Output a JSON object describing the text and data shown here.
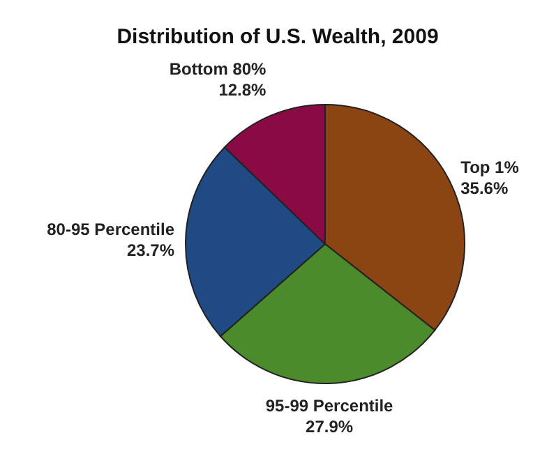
{
  "chart_data": {
    "type": "pie",
    "title": "Distribution of U.S. Wealth, 2009",
    "categories": [
      "Top 1%",
      "95-99 Percentile",
      "80-95 Percentile",
      "Bottom 80%"
    ],
    "values": [
      35.6,
      27.9,
      23.7,
      12.8
    ],
    "value_labels": [
      "35.6%",
      "27.9%",
      "23.7%",
      "12.8%"
    ],
    "colors": [
      "#8b4513",
      "#4b8b2b",
      "#1f4a84",
      "#8a0a44"
    ],
    "legend": false
  }
}
